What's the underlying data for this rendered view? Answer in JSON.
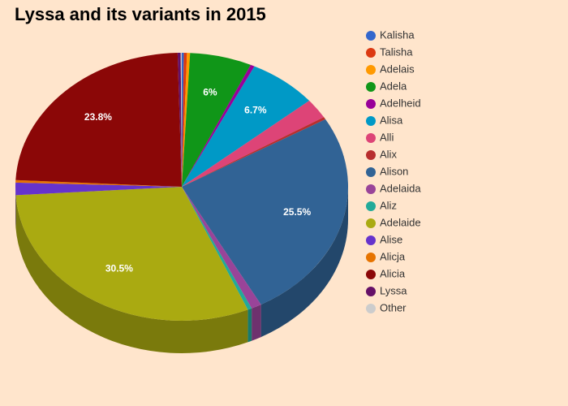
{
  "chart_data": {
    "type": "pie",
    "title": "Lyssa and its variants in 2015",
    "categories": [
      "Kalisha",
      "Talisha",
      "Adelais",
      "Adela",
      "Adelheid",
      "Alisa",
      "Alli",
      "Alix",
      "Alison",
      "Adelaida",
      "Aliz",
      "Adelaide",
      "Alise",
      "Alicja",
      "Alicia",
      "Lyssa",
      "Other"
    ],
    "values": [
      0.2,
      0.3,
      0.3,
      6,
      0.4,
      6.7,
      2.4,
      0.3,
      25.5,
      1.0,
      0.4,
      30.5,
      1.5,
      0.3,
      23.8,
      0.3,
      0.1
    ],
    "value_labels": [
      null,
      null,
      null,
      "6%",
      null,
      "6.7%",
      null,
      null,
      "25.5%",
      null,
      null,
      "30.5%",
      null,
      null,
      "23.8%",
      null,
      null
    ],
    "colors": [
      "#3366cc",
      "#dc3912",
      "#ff9900",
      "#109618",
      "#990099",
      "#0099c6",
      "#dd4477",
      "#b82e2e",
      "#316395",
      "#994499",
      "#22aa99",
      "#aaaa11",
      "#6633cc",
      "#e67300",
      "#8b0707",
      "#651067",
      "#cccccc"
    ],
    "legend": "right"
  }
}
